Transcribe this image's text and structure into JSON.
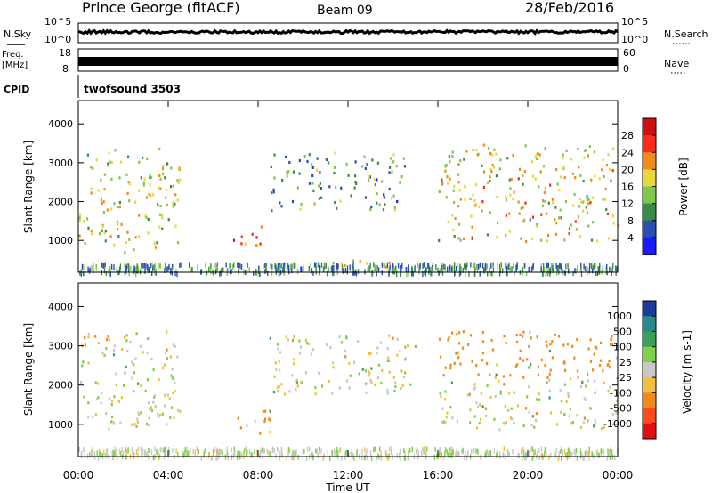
{
  "header": {
    "station": "Prince George (fitACF)",
    "beam": "Beam 09",
    "date": "28/Feb/2016"
  },
  "panels": {
    "nsky": {
      "label": "N.Sky",
      "ytick_top": "10^5",
      "ytick_bottom": "10^0",
      "right_label": "N.Search",
      "right_ytick_top": "10^5",
      "right_ytick_bottom": "10^0"
    },
    "freq": {
      "label_line1": "Freq.",
      "label_line2": "[MHz]",
      "ytick_top": "18",
      "ytick_bottom": "8",
      "right_label": "Nave",
      "right_ytick_top": "60",
      "right_ytick_bottom": "0"
    },
    "cpid": {
      "label": "CPID",
      "value": "twofsound 3503"
    }
  },
  "chart_data": [
    {
      "type": "heatmap",
      "title": "",
      "ylabel": "Slant Range [km]",
      "xlabel": "",
      "x_range": [
        "00:00",
        "24:00"
      ],
      "ylim": [
        180,
        4600
      ],
      "yticks": [
        "1000",
        "2000",
        "3000",
        "4000"
      ],
      "colorbar": {
        "label": "Power [dB]",
        "ticks": [
          "4",
          "8",
          "12",
          "16",
          "20",
          "24",
          "28"
        ],
        "colors": [
          "#1a1aff",
          "#2a4fb0",
          "#3a8a4a",
          "#7fc84a",
          "#e8d83a",
          "#f08a1a",
          "#ff2a1a",
          "#d01010"
        ]
      },
      "features": [
        {
          "x_hr": [
            0.0,
            4.5
          ],
          "range_km": [
            900,
            3400
          ],
          "mean_power": 16
        },
        {
          "x_hr": [
            2.0,
            4.0
          ],
          "range_km": [
            700,
            900
          ],
          "mean_power": 18
        },
        {
          "x_hr": [
            6.8,
            8.2
          ],
          "range_km": [
            900,
            1500
          ],
          "mean_power": 26
        },
        {
          "x_hr": [
            8.5,
            14.5
          ],
          "range_km": [
            1800,
            3300
          ],
          "mean_power": 10
        },
        {
          "x_hr": [
            11.0,
            14.0
          ],
          "range_km": [
            300,
            600
          ],
          "mean_power": 20
        },
        {
          "x_hr": [
            16.0,
            24.0
          ],
          "range_km": [
            1000,
            3500
          ],
          "mean_power": 18
        }
      ]
    },
    {
      "type": "heatmap",
      "title": "",
      "ylabel": "Slant Range [km]",
      "xlabel": "Time UT",
      "x_range": [
        "00:00",
        "24:00"
      ],
      "xticks": [
        "00:00",
        "04:00",
        "08:00",
        "12:00",
        "16:00",
        "20:00",
        "00:00"
      ],
      "ylim": [
        180,
        4600
      ],
      "yticks": [
        "1000",
        "2000",
        "3000",
        "4000"
      ],
      "colorbar": {
        "label": "Velocity [m s-1]",
        "ticks": [
          "1000",
          "500",
          "100",
          "25",
          "-25",
          "-100",
          "-500",
          "-1000"
        ],
        "colors": [
          "#1a3aa0",
          "#2a8a8a",
          "#3aa05a",
          "#7fd04a",
          "#c8c8c8",
          "#f0c040",
          "#f08a1a",
          "#ff4a1a",
          "#e01010"
        ]
      },
      "features": [
        {
          "x_hr": [
            0.0,
            4.5
          ],
          "range_km": [
            900,
            3400
          ],
          "mean_velocity": 0
        },
        {
          "x_hr": [
            6.8,
            8.5
          ],
          "range_km": [
            800,
            1500
          ],
          "mean_velocity": -150
        },
        {
          "x_hr": [
            8.5,
            15.0
          ],
          "range_km": [
            1800,
            3300
          ],
          "mean_velocity": 0
        },
        {
          "x_hr": [
            16.0,
            24.0
          ],
          "range_km": [
            900,
            2200
          ],
          "mean_velocity": 0
        },
        {
          "x_hr": [
            16.0,
            24.0
          ],
          "range_km": [
            2200,
            3400
          ],
          "mean_velocity": -300
        }
      ]
    }
  ],
  "colors": {
    "axis": "#000000",
    "background": "#ffffff"
  }
}
